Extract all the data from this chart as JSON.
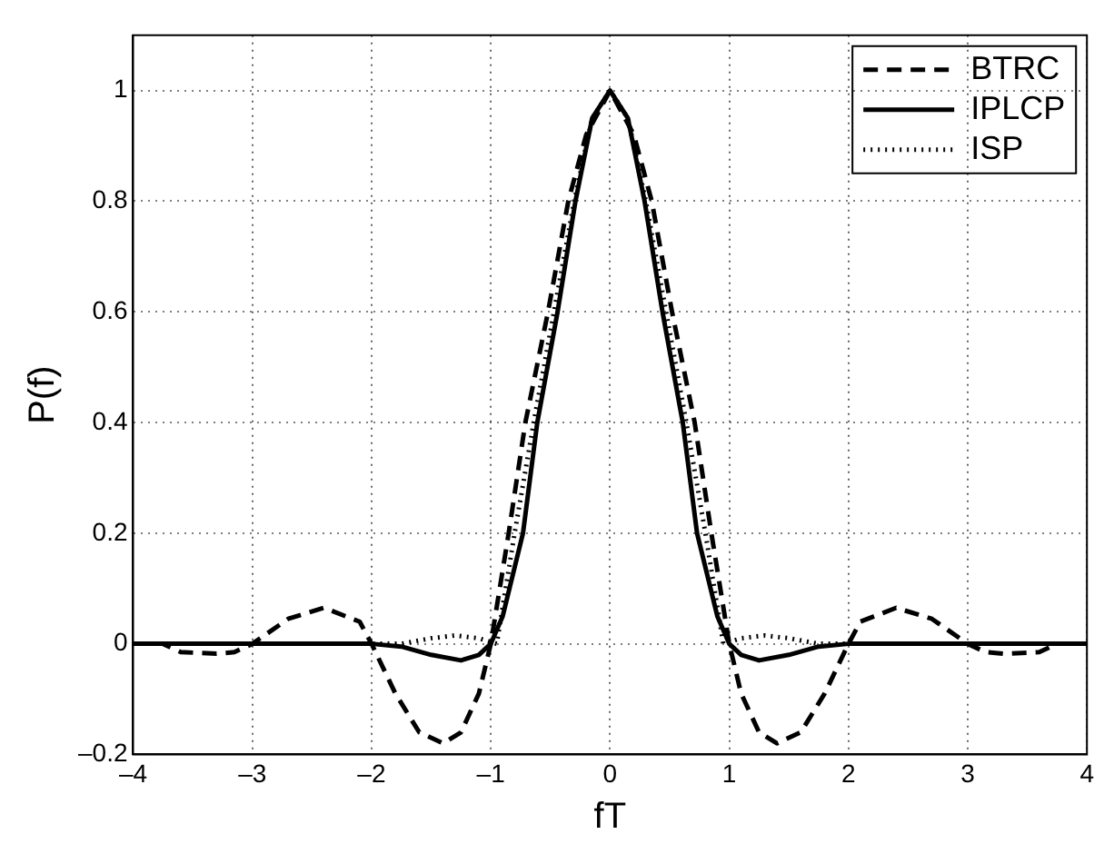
{
  "chart_data": {
    "type": "line",
    "xlabel": "fT",
    "ylabel": "P(f)",
    "xlim": [
      -4,
      4
    ],
    "ylim": [
      -0.2,
      1.1
    ],
    "xticks": [
      {
        "value": -4,
        "label": "–4"
      },
      {
        "value": -3,
        "label": "–3"
      },
      {
        "value": -2,
        "label": "–2"
      },
      {
        "value": -1,
        "label": "–1"
      },
      0,
      1,
      2,
      3,
      4
    ],
    "yticks": [
      {
        "value": -0.2,
        "label": "–0.2"
      },
      0,
      0.2,
      0.4,
      0.6,
      0.8,
      1
    ],
    "grid": true,
    "legend": "top right",
    "marker": "none",
    "series": [
      {
        "name": "BTRC",
        "color": "#000000",
        "line_style": "dashed",
        "x": [
          -4,
          -3.75,
          -3.6,
          -3.3,
          -3.15,
          -3,
          -2.7,
          -2.4,
          -2.1,
          -2,
          -1.8,
          -1.6,
          -1.4,
          -1.25,
          -1.1,
          -1,
          -0.85,
          -0.71,
          -0.52,
          -0.35,
          -0.2,
          0,
          0.2,
          0.35,
          0.52,
          0.71,
          0.85,
          1,
          1.1,
          1.25,
          1.4,
          1.6,
          1.8,
          2,
          2.1,
          2.4,
          2.7,
          3,
          3.15,
          3.3,
          3.6,
          3.75,
          4
        ],
        "values": [
          0,
          0,
          -0.015,
          -0.018,
          -0.015,
          0,
          0.045,
          0.065,
          0.04,
          0,
          -0.09,
          -0.16,
          -0.18,
          -0.16,
          -0.09,
          0,
          0.2,
          0.4,
          0.6,
          0.8,
          0.92,
          1,
          0.92,
          0.8,
          0.6,
          0.4,
          0.2,
          0,
          -0.09,
          -0.16,
          -0.18,
          -0.16,
          -0.09,
          0,
          0.04,
          0.065,
          0.045,
          0,
          -0.015,
          -0.018,
          -0.015,
          0,
          0
        ]
      },
      {
        "name": "IPLCP",
        "color": "#000000",
        "line_style": "solid",
        "x": [
          -4,
          -2,
          -1.75,
          -1.5,
          -1.25,
          -1.1,
          -1,
          -0.9,
          -0.73,
          -0.61,
          -0.44,
          -0.29,
          -0.15,
          0,
          0.15,
          0.29,
          0.44,
          0.61,
          0.73,
          0.9,
          1,
          1.1,
          1.25,
          1.5,
          1.75,
          2,
          4
        ],
        "values": [
          0,
          0,
          -0.005,
          -0.02,
          -0.03,
          -0.02,
          0,
          0.05,
          0.2,
          0.4,
          0.6,
          0.8,
          0.95,
          1,
          0.95,
          0.8,
          0.6,
          0.4,
          0.2,
          0.05,
          0,
          -0.02,
          -0.03,
          -0.02,
          -0.005,
          0,
          0
        ]
      },
      {
        "name": "ISP",
        "color": "#000000",
        "line_style": "dotted",
        "x": [
          -4,
          -1.75,
          -1.5,
          -1.3,
          -1.1,
          -0.95,
          -0.8,
          -0.64,
          -0.47,
          -0.3,
          -0.15,
          0,
          0.15,
          0.3,
          0.47,
          0.64,
          0.8,
          0.95,
          1.1,
          1.3,
          1.5,
          1.75,
          4
        ],
        "values": [
          0,
          0,
          0.01,
          0.015,
          0.01,
          0,
          0.2,
          0.4,
          0.6,
          0.8,
          0.95,
          1,
          0.95,
          0.8,
          0.6,
          0.4,
          0.2,
          0,
          0.01,
          0.015,
          0.01,
          0,
          0
        ]
      }
    ]
  }
}
